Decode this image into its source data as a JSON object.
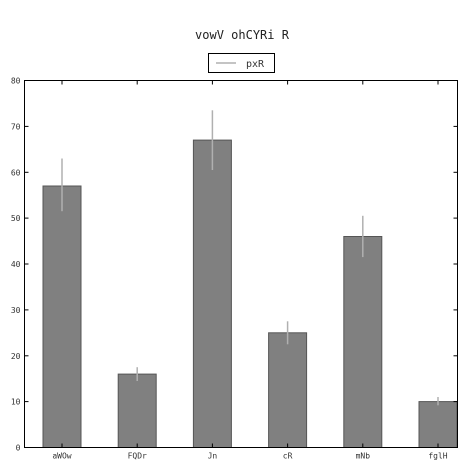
{
  "chart_data": {
    "type": "bar",
    "title": "vowV ohCYRi  R",
    "xlabel": "",
    "ylabel": "",
    "categories": [
      "aWOw",
      "FQDr",
      "Jn",
      "cR",
      "mNb",
      "fglH"
    ],
    "series": [
      {
        "name": "pxR",
        "values": [
          57,
          16,
          67,
          25,
          46,
          10
        ],
        "error_low": [
          51.5,
          14.5,
          60.5,
          22.5,
          41.5,
          9.2
        ],
        "error_high": [
          63,
          17.5,
          73.5,
          27.5,
          50.5,
          11
        ]
      }
    ],
    "ylim": [
      0,
      80
    ],
    "yticks": [
      0,
      10,
      20,
      30,
      40,
      50,
      60,
      70,
      80
    ],
    "grid": false,
    "legend": "top-center",
    "colors": {
      "bar": "#808080",
      "bar_edge": "#555555",
      "error": "#b0b0b0",
      "axis": "#000000"
    }
  }
}
